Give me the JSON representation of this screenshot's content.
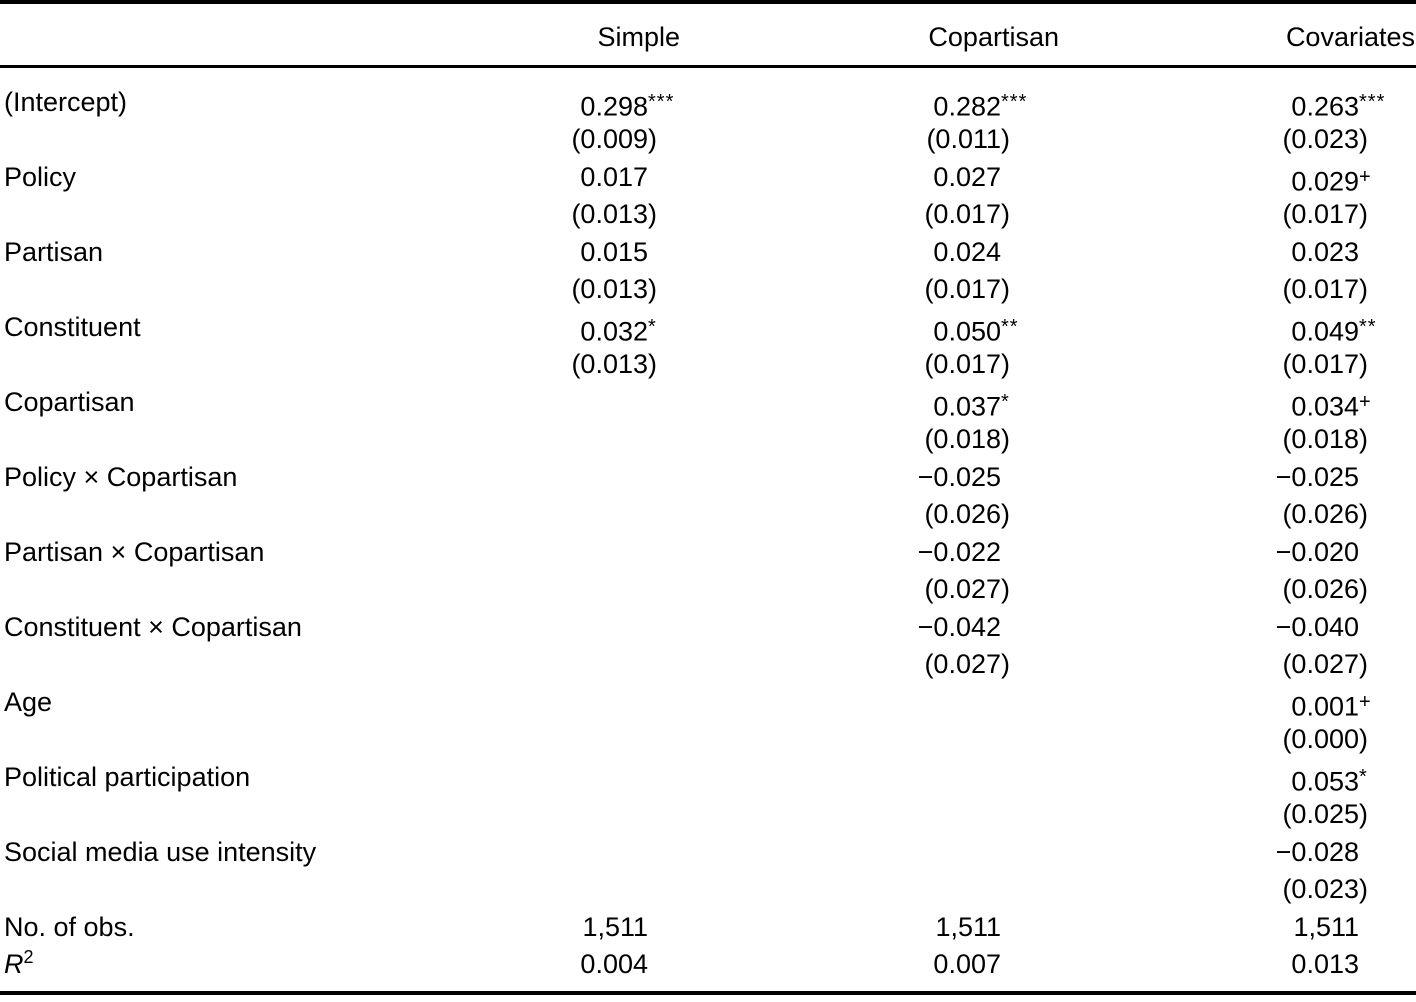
{
  "table": {
    "columns": [
      "",
      "Simple",
      "Copartisan",
      "Covariates"
    ],
    "rows": [
      {
        "label": "(Intercept)",
        "cells": [
          {
            "est": "0.298",
            "sig": "***",
            "se": "(0.009)"
          },
          {
            "est": "0.282",
            "sig": "***",
            "se": "(0.011)"
          },
          {
            "est": "0.263",
            "sig": "***",
            "se": "(0.023)"
          }
        ]
      },
      {
        "label": "Policy",
        "cells": [
          {
            "est": "0.017",
            "sig": "",
            "se": "(0.013)"
          },
          {
            "est": "0.027",
            "sig": "",
            "se": "(0.017)"
          },
          {
            "est": "0.029",
            "sig": "+",
            "se": "(0.017)"
          }
        ]
      },
      {
        "label": "Partisan",
        "cells": [
          {
            "est": "0.015",
            "sig": "",
            "se": "(0.013)"
          },
          {
            "est": "0.024",
            "sig": "",
            "se": "(0.017)"
          },
          {
            "est": "0.023",
            "sig": "",
            "se": "(0.017)"
          }
        ]
      },
      {
        "label": "Constituent",
        "cells": [
          {
            "est": "0.032",
            "sig": "*",
            "se": "(0.013)"
          },
          {
            "est": "0.050",
            "sig": "**",
            "se": "(0.017)"
          },
          {
            "est": "0.049",
            "sig": "**",
            "se": "(0.017)"
          }
        ]
      },
      {
        "label": "Copartisan",
        "cells": [
          null,
          {
            "est": "0.037",
            "sig": "*",
            "se": "(0.018)"
          },
          {
            "est": "0.034",
            "sig": "+",
            "se": "(0.018)"
          }
        ]
      },
      {
        "label": "Policy × Copartisan",
        "cells": [
          null,
          {
            "est": "−0.025",
            "sig": "",
            "se": "(0.026)"
          },
          {
            "est": "−0.025",
            "sig": "",
            "se": "(0.026)"
          }
        ]
      },
      {
        "label": "Partisan × Copartisan",
        "cells": [
          null,
          {
            "est": "−0.022",
            "sig": "",
            "se": "(0.027)"
          },
          {
            "est": "−0.020",
            "sig": "",
            "se": "(0.026)"
          }
        ]
      },
      {
        "label": "Constituent × Copartisan",
        "cells": [
          null,
          {
            "est": "−0.042",
            "sig": "",
            "se": "(0.027)"
          },
          {
            "est": "−0.040",
            "sig": "",
            "se": "(0.027)"
          }
        ]
      },
      {
        "label": "Age",
        "cells": [
          null,
          null,
          {
            "est": "0.001",
            "sig": "+",
            "se": "(0.000)"
          }
        ]
      },
      {
        "label": "Political participation",
        "cells": [
          null,
          null,
          {
            "est": "0.053",
            "sig": "*",
            "se": "(0.025)"
          }
        ]
      },
      {
        "label": "Social media use intensity",
        "cells": [
          null,
          null,
          {
            "est": "−0.028",
            "sig": "",
            "se": "(0.023)"
          }
        ]
      }
    ],
    "summary_rows": [
      {
        "label": "No. of obs.",
        "values": [
          "1,511",
          "1,511",
          "1,511"
        ]
      },
      {
        "label": "R2",
        "label_base": "R",
        "label_sup": "2",
        "values": [
          "0.004",
          "0.007",
          "0.013"
        ]
      }
    ]
  }
}
